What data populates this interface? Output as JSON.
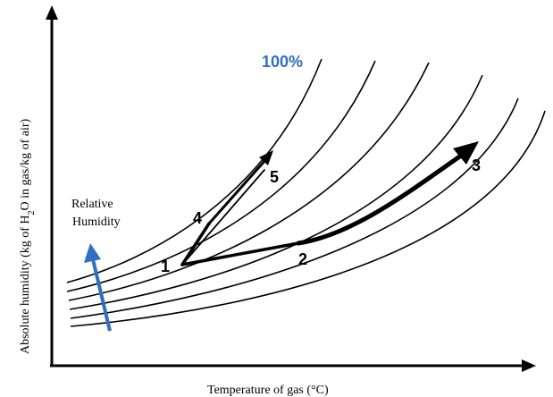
{
  "figure": {
    "x_axis_title": "Temperature of gas  (°C)",
    "y_axis_title": {
      "prefix": "Absolute humidity  (kg of  H",
      "subscript": "2",
      "suffix": "O in gas/kg of air)"
    },
    "saturation_label": "100%",
    "relative_humidity_label": [
      "Relative",
      "Humidity"
    ],
    "state_points": [
      "1",
      "2",
      "3",
      "4",
      "5"
    ],
    "curve_count": 6,
    "paths": [
      {
        "from": "1",
        "to": "2"
      },
      {
        "from": "2",
        "to": "3"
      },
      {
        "from": "1",
        "to": "4"
      },
      {
        "from": "4",
        "to": "5"
      }
    ],
    "colors": {
      "axis": "#000000",
      "curves": "#000000",
      "process_arrows": "#000000",
      "saturation_label": "#2f6fbf",
      "relative_humidity_arrow": "#2f6fbf"
    }
  }
}
